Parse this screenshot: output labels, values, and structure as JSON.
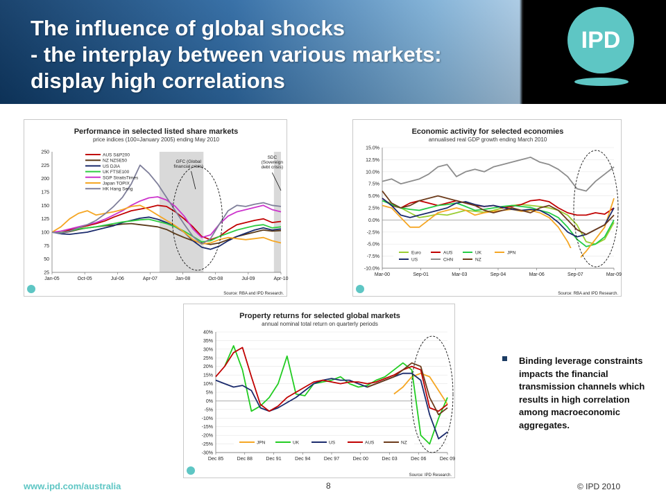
{
  "slide": {
    "title_line1": "The influence of global shocks",
    "title_line2": "- the interplay between various markets:",
    "title_line3": "display high correlations",
    "logo_text": "IPD",
    "bullet": "Binding leverage constraints impacts the financial transmission channels which results in high correlation among macroeconomic aggregates.",
    "footer_url": "www.ipd.com/australia",
    "page_number": "8",
    "copyright": "© IPD 2010"
  },
  "colors": {
    "header_dark": "#0f3a66",
    "ipd_teal": "#5ec6c4",
    "shade": "#d9d9d9"
  },
  "chart_data": [
    {
      "id": "share",
      "type": "line",
      "title": "Performance in selected listed share markets",
      "subtitle": "price indices (100=January 2005) ending May 2010",
      "source": "Source: RBA and IPD Research.",
      "x_ticks": [
        "Jan-05",
        "Oct-05",
        "Jul-06",
        "Apr-07",
        "Jan-08",
        "Oct-08",
        "Jul-09",
        "Apr-10"
      ],
      "ylim": [
        25,
        250
      ],
      "y_ticks": [
        "250",
        "225",
        "200",
        "175",
        "150",
        "125",
        "100",
        "75",
        "50",
        "25"
      ],
      "annotations": [
        "GFC (Global financial crisis)",
        "SDC (Sovereign debt crisis)"
      ],
      "series": [
        {
          "name": "AUS S&P200",
          "color": "#c00000",
          "values": [
            100,
            99,
            104,
            108,
            112,
            116,
            121,
            128,
            134,
            140,
            143,
            146,
            150,
            148,
            138,
            125,
            110,
            92,
            86,
            92,
            104,
            114,
            118,
            122,
            125,
            118,
            120
          ]
        },
        {
          "name": "NZ NZSE50",
          "color": "#5a3a1a",
          "values": [
            100,
            98,
            101,
            105,
            108,
            110,
            112,
            113,
            115,
            116,
            114,
            112,
            110,
            105,
            97,
            90,
            84,
            80,
            77,
            80,
            86,
            92,
            96,
            100,
            104,
            102,
            103
          ]
        },
        {
          "name": "US DJIA",
          "color": "#1a2a6c",
          "values": [
            100,
            97,
            96,
            98,
            100,
            104,
            108,
            112,
            118,
            122,
            126,
            128,
            124,
            118,
            110,
            100,
            84,
            72,
            68,
            74,
            84,
            92,
            98,
            104,
            108,
            104,
            106
          ]
        },
        {
          "name": "UK FTSE100",
          "color": "#2ecc40",
          "values": [
            100,
            99,
            102,
            106,
            108,
            110,
            113,
            116,
            119,
            121,
            123,
            124,
            120,
            116,
            110,
            102,
            92,
            82,
            84,
            92,
            98,
            104,
            108,
            112,
            114,
            108,
            110
          ]
        },
        {
          "name": "SGP StraitsTimes",
          "color": "#cc33cc",
          "values": [
            100,
            102,
            106,
            110,
            114,
            118,
            124,
            132,
            140,
            150,
            158,
            164,
            166,
            160,
            148,
            130,
            106,
            90,
            95,
            115,
            130,
            138,
            142,
            146,
            150,
            142,
            138
          ]
        },
        {
          "name": "Japan TOPIX",
          "color": "#f5a623",
          "values": [
            100,
            110,
            125,
            135,
            140,
            132,
            135,
            138,
            142,
            148,
            150,
            142,
            132,
            122,
            112,
            100,
            86,
            78,
            80,
            86,
            90,
            88,
            86,
            88,
            90,
            84,
            80
          ]
        },
        {
          "name": "HK Hang Seng",
          "color": "#7f7f9a",
          "values": [
            100,
            98,
            102,
            108,
            114,
            122,
            134,
            148,
            165,
            190,
            225,
            210,
            190,
            165,
            140,
            115,
            92,
            78,
            88,
            115,
            140,
            150,
            148,
            152,
            155,
            150,
            148
          ]
        }
      ]
    },
    {
      "id": "gdp",
      "type": "line",
      "title": "Economic activity for selected economies",
      "subtitle": "annualised real GDP growth ending March 2010",
      "source": "Source: RBA and IPD Research.",
      "x_ticks": [
        "Mar-00",
        "Sep-01",
        "Mar-03",
        "Sep-04",
        "Mar-06",
        "Sep-07",
        "Mar-09"
      ],
      "ylim": [
        -10,
        15
      ],
      "y_ticks": [
        "15.0%",
        "12.5%",
        "10.0%",
        "7.5%",
        "5.0%",
        "2.5%",
        "0.0%",
        "-2.5%",
        "-5.0%",
        "-7.5%",
        "-10.0%"
      ],
      "series": [
        {
          "name": "Euro",
          "color": "#9acd32",
          "values": [
            4.0,
            3.5,
            2.5,
            1.5,
            0.5,
            0.8,
            1.2,
            1.0,
            1.5,
            2.0,
            1.8,
            1.6,
            2.0,
            2.5,
            3.0,
            3.2,
            3.0,
            2.8,
            2.5,
            2.0,
            1.0,
            -1.0,
            -4.5,
            -5.0,
            -4.0,
            -0.5
          ]
        },
        {
          "name": "AUS",
          "color": "#c00000",
          "values": [
            4.5,
            3.0,
            2.5,
            3.5,
            4.0,
            3.5,
            3.0,
            3.5,
            4.0,
            3.5,
            3.0,
            2.8,
            3.0,
            2.5,
            2.8,
            3.2,
            4.0,
            4.2,
            3.8,
            2.5,
            1.5,
            1.0,
            1.0,
            1.5,
            1.2,
            2.5
          ]
        },
        {
          "name": "UK",
          "color": "#22cc44",
          "values": [
            4.0,
            3.2,
            2.5,
            2.2,
            2.0,
            2.5,
            3.0,
            3.2,
            3.5,
            2.8,
            2.0,
            2.2,
            2.5,
            2.8,
            3.0,
            2.8,
            2.6,
            2.0,
            1.5,
            0.5,
            -1.5,
            -4.0,
            -5.5,
            -5.0,
            -3.5,
            0.0
          ]
        },
        {
          "name": "JPN",
          "color": "#f5a623",
          "values": [
            3.0,
            2.5,
            0.5,
            -1.5,
            -1.5,
            0.0,
            1.5,
            2.0,
            2.5,
            2.0,
            1.0,
            1.5,
            1.8,
            2.0,
            2.2,
            1.8,
            2.0,
            1.5,
            0.5,
            -1.5,
            -4.5,
            -8.5,
            -6.5,
            -4.0,
            -1.5,
            4.5
          ]
        },
        {
          "name": "US",
          "color": "#1a2a6c",
          "values": [
            4.5,
            3.0,
            1.0,
            0.5,
            1.0,
            1.5,
            2.0,
            2.5,
            3.5,
            3.8,
            3.2,
            2.8,
            3.0,
            2.6,
            2.2,
            2.0,
            2.2,
            2.0,
            1.0,
            -0.5,
            -2.5,
            -3.5,
            -3.0,
            -2.0,
            -1.0,
            2.5
          ]
        },
        {
          "name": "CHN",
          "color": "#8c8c8c",
          "values": [
            8.0,
            8.5,
            7.5,
            8.0,
            8.5,
            9.5,
            11.0,
            11.5,
            9.0,
            10.0,
            10.5,
            10.0,
            11.0,
            11.5,
            12.0,
            12.5,
            13.0,
            12.0,
            11.5,
            10.5,
            9.0,
            6.5,
            6.0,
            8.0,
            9.5,
            11.0
          ]
        },
        {
          "name": "NZ",
          "color": "#6b3a1a",
          "values": [
            6.0,
            3.5,
            2.5,
            3.0,
            4.0,
            4.5,
            5.0,
            4.5,
            4.0,
            3.5,
            3.0,
            2.0,
            1.5,
            2.0,
            2.5,
            2.0,
            1.5,
            2.5,
            3.0,
            2.0,
            0.0,
            -2.0,
            -3.0,
            -2.0,
            -1.0,
            1.0
          ]
        }
      ]
    },
    {
      "id": "property",
      "type": "line",
      "title": "Property returns for selected global markets",
      "subtitle": "annual nominal total return on quarterly periods",
      "source": "Source: IPD Research.",
      "x_ticks": [
        "Dec 85",
        "Dec 88",
        "Dec 91",
        "Dec 94",
        "Dec 97",
        "Dec 00",
        "Dec 03",
        "Dec 06",
        "Dec 09"
      ],
      "ylim": [
        -30,
        40
      ],
      "y_ticks": [
        "40%",
        "35%",
        "30%",
        "25%",
        "20%",
        "15%",
        "10%",
        "5%",
        "0%",
        "-5%",
        "-10%",
        "-15%",
        "-20%",
        "-25%",
        "-30%"
      ],
      "series": [
        {
          "name": "JPN",
          "color": "#f5a623",
          "values": [
            null,
            null,
            null,
            null,
            null,
            null,
            null,
            null,
            null,
            null,
            null,
            null,
            null,
            null,
            null,
            null,
            null,
            null,
            null,
            null,
            4,
            8,
            14,
            16,
            14,
            6,
            -2
          ]
        },
        {
          "name": "UK",
          "color": "#22cc22",
          "values": [
            null,
            20,
            32,
            18,
            -6,
            -3,
            2,
            10,
            26,
            4,
            3,
            10,
            11,
            12,
            14,
            10,
            8,
            9,
            12,
            14,
            18,
            22,
            18,
            -20,
            -25,
            -10,
            2
          ]
        },
        {
          "name": "US",
          "color": "#1a2a6c",
          "values": [
            12,
            10,
            8,
            9,
            6,
            -4,
            -6,
            -4,
            -1,
            2,
            6,
            10,
            12,
            13,
            12,
            12,
            10,
            8,
            10,
            12,
            14,
            16,
            16,
            12,
            -8,
            -22,
            -18
          ]
        },
        {
          "name": "AUS",
          "color": "#c00000",
          "values": [
            14,
            20,
            28,
            31,
            14,
            -2,
            -6,
            -3,
            2,
            5,
            8,
            11,
            12,
            11,
            10,
            11,
            11,
            10,
            11,
            13,
            15,
            18,
            20,
            18,
            -4,
            -6,
            -2
          ]
        },
        {
          "name": "NZ",
          "color": "#6b3a1a",
          "values": [
            null,
            null,
            null,
            null,
            null,
            null,
            null,
            null,
            null,
            null,
            null,
            null,
            null,
            null,
            null,
            null,
            null,
            8,
            10,
            12,
            14,
            18,
            22,
            20,
            2,
            -8,
            -4
          ]
        }
      ]
    }
  ]
}
